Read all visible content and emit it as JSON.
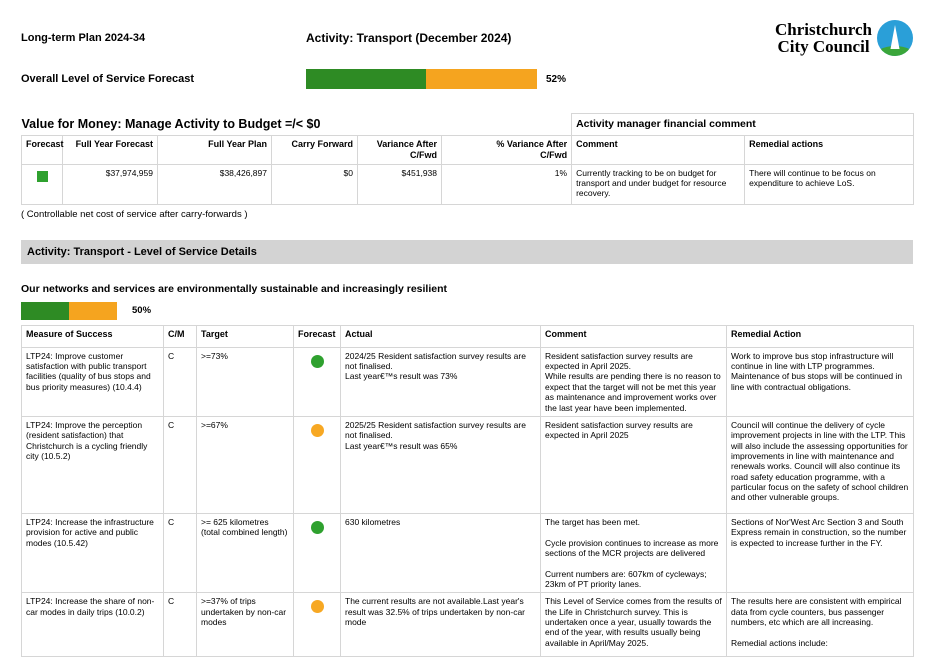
{
  "header": {
    "plan_title": "Long-term Plan 2024-34",
    "activity_title": "Activity: Transport (December 2024)",
    "logo_line1": "Christchurch",
    "logo_line2": "City Council"
  },
  "overall": {
    "label": "Overall Level of Service Forecast",
    "green_pct": 52,
    "percent_label": "52%"
  },
  "financial": {
    "title": "Value for Money: Manage Activity to Budget =/< $0",
    "manager_header": "Activity manager financial comment",
    "columns": [
      "Forecast",
      "Full Year Forecast",
      "Full Year Plan",
      "Carry Forward",
      "Variance After\nC/Fwd",
      "% Variance After\nC/Fwd",
      "Comment",
      "Remedial actions"
    ],
    "row": {
      "forecast_status": "green",
      "full_year_forecast": "$37,974,959",
      "full_year_plan": "$38,426,897",
      "carry_forward": "$0",
      "variance_after": "$451,938",
      "pct_variance_after": "1%",
      "comment": "Currently tracking to be on budget for transport and under budget for resource recovery.",
      "remedial": "There will continue to be focus on expenditure to achieve LoS."
    },
    "footnote": "( Controllable net cost of service after carry-forwards )"
  },
  "section": {
    "title": "Activity: Transport - Level of Service Details"
  },
  "los_group": {
    "heading": "Our networks and services are environmentally sustainable and increasingly resilient",
    "green_pct": 50,
    "percent_label": "50%",
    "columns": [
      "Measure of Success",
      "C/M",
      "Target",
      "Forecast",
      "Actual",
      "Comment",
      "Remedial Action"
    ],
    "rows": [
      {
        "measure": "LTP24: Improve customer satisfaction with public transport facilities (quality of bus stops and bus priority measures) (10.4.4)",
        "cm": "C",
        "target": ">=73%",
        "forecast": "green",
        "actual": "2024/25 Resident satisfaction survey results are not finalised.\nLast year€™s result was 73%",
        "comment": "Resident satisfaction survey results are expected in April 2025.\nWhile results are pending there is no reason to expect that the target will not be met this year as maintenance and improvement works over the last year have been implemented.",
        "remedial": "Work to improve bus stop infrastructure will continue in line with LTP programmes.\nMaintenance of bus stops will be continued in line with contractual obligations."
      },
      {
        "measure": "LTP24: Improve the perception (resident satisfaction) that Christchurch is a cycling friendly city (10.5.2)",
        "cm": "C",
        "target": ">=67%",
        "forecast": "orange",
        "actual": "2025/25 Resident satisfaction survey results are not finalised.\nLast year€™s result was 65%",
        "comment": "Resident satisfaction survey results are expected in April 2025",
        "remedial": "Council will continue the delivery of cycle improvement projects in line with the LTP. This will also include the assessing opportunities for improvements in line with maintenance and renewals works.  Council will also continue its road safety education programme, with a particular focus on the safety of school children and other vulnerable groups."
      },
      {
        "measure": "LTP24: Increase the infrastructure provision for active and public modes (10.5.42)",
        "cm": "C",
        "target": ">= 625 kilometres (total combined length)",
        "forecast": "green",
        "actual": "630 kilometres",
        "comment": "The target has been met.\n\nCycle provision continues to increase as more sections of the MCR projects are delivered\n\nCurrent numbers are: 607km of cycleways; 23km of PT priority lanes.",
        "remedial": "Sections of Nor'West Arc Section 3 and South Express remain in construction, so the number is expected to increase further in the FY."
      },
      {
        "measure": "LTP24: Increase the share of non-car modes in daily trips (10.0.2)",
        "cm": "C",
        "target": ">=37% of trips undertaken by non-car modes",
        "forecast": "orange",
        "actual": "The current results are not available.Last year's result was 32.5% of trips undertaken by non-car mode",
        "comment": "This Level of Service comes from the results of the Life in Christchurch survey. This is undertaken once a year, usually towards the end of the year, with results usually being available in April/May 2025.",
        "remedial": "The results here are consistent with empirical data from cycle counters, bus passenger numbers, etc which are all increasing.\n\nRemedial actions include:"
      }
    ]
  },
  "colors": {
    "status_green": "#2fa12f",
    "status_orange": "#f7a823",
    "bar_green": "#2e8b24",
    "bar_orange": "#f5a41f",
    "section_bg": "#d3d3d3",
    "logo_blue": "#2a9fd8",
    "logo_green": "#3aa63a"
  }
}
